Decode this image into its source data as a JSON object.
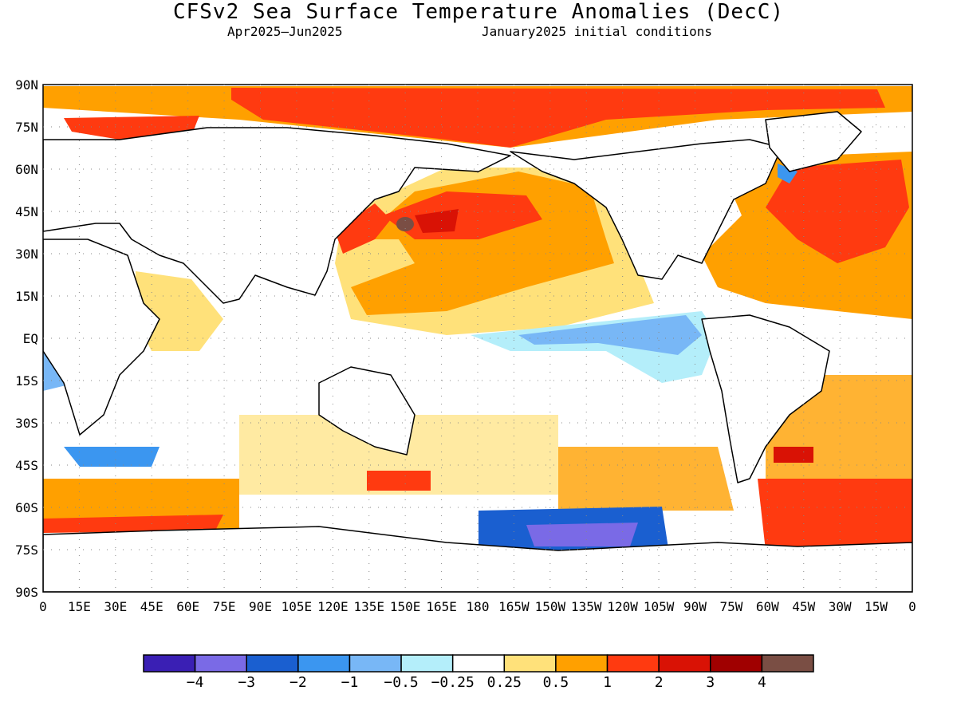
{
  "title": "CFSv2 Sea Surface Temperature Anomalies (DecC)",
  "subtitle_period": "Apr2025—Jun2025",
  "subtitle_init": "January2025 initial conditions",
  "map": {
    "lat_labels": [
      "90N",
      "75N",
      "60N",
      "45N",
      "30N",
      "15N",
      "EQ",
      "15S",
      "30S",
      "45S",
      "60S",
      "75S",
      "90S"
    ],
    "lon_labels": [
      "0",
      "15E",
      "30E",
      "45E",
      "60E",
      "75E",
      "90E",
      "105E",
      "120E",
      "135E",
      "150E",
      "165E",
      "180",
      "165W",
      "150W",
      "135W",
      "120W",
      "105W",
      "90W",
      "75W",
      "60W",
      "45W",
      "30W",
      "15W",
      "0"
    ],
    "grid": "dotted"
  },
  "colorbar": {
    "colors": [
      "#3a1fb4",
      "#7a6ae6",
      "#1a5fd0",
      "#3b96f0",
      "#78b7f6",
      "#b4eefa",
      "#ffffff",
      "#ffe17a",
      "#ffa000",
      "#ff3a10",
      "#d91205",
      "#a00000",
      "#7a4e44"
    ],
    "labels": [
      "−4",
      "−3",
      "−2",
      "−1",
      "−0.5",
      "−0.25",
      "0.25",
      "0.5",
      "1",
      "2",
      "3",
      "4"
    ]
  }
}
